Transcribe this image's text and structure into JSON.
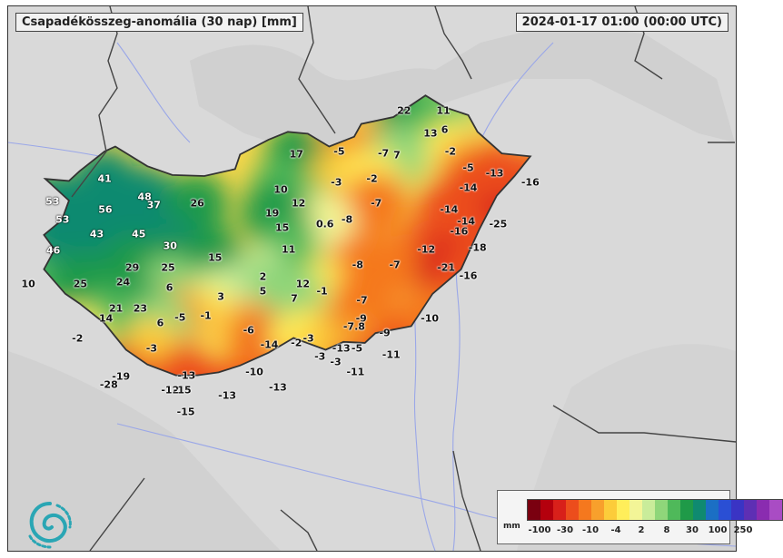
{
  "title": "Csapadékösszeg-anomália (30 nap) [mm]",
  "datetime": "2024-01-17 01:00 (00:00 UTC)",
  "map": {
    "region": "Hungary",
    "measurements": [
      {
        "label": "22",
        "lon": 21.15,
        "lat": 48.42
      },
      {
        "label": "11",
        "lon": 21.7,
        "lat": 48.42
      },
      {
        "label": "6",
        "lon": 21.72,
        "lat": 48.22
      },
      {
        "label": "13",
        "lon": 21.52,
        "lat": 48.18
      },
      {
        "label": "-2",
        "lon": 21.8,
        "lat": 48.0
      },
      {
        "label": "-5",
        "lon": 20.24,
        "lat": 48.0
      },
      {
        "label": "-7",
        "lon": 20.86,
        "lat": 47.98
      },
      {
        "label": "7",
        "lon": 21.05,
        "lat": 47.96
      },
      {
        "label": "17",
        "lon": 19.64,
        "lat": 47.97
      },
      {
        "label": "-5",
        "lon": 22.05,
        "lat": 47.83
      },
      {
        "label": "-13",
        "lon": 22.42,
        "lat": 47.78
      },
      {
        "label": "-16",
        "lon": 22.92,
        "lat": 47.69
      },
      {
        "label": "-3",
        "lon": 20.2,
        "lat": 47.69
      },
      {
        "label": "-2",
        "lon": 20.7,
        "lat": 47.72
      },
      {
        "label": "-14",
        "lon": 22.05,
        "lat": 47.63
      },
      {
        "label": "41",
        "lon": 16.95,
        "lat": 47.72
      },
      {
        "label": "10",
        "lon": 19.42,
        "lat": 47.61
      },
      {
        "label": "48",
        "lon": 17.51,
        "lat": 47.54
      },
      {
        "label": "37",
        "lon": 17.64,
        "lat": 47.45
      },
      {
        "label": "26",
        "lon": 18.25,
        "lat": 47.47
      },
      {
        "label": "12",
        "lon": 19.67,
        "lat": 47.47
      },
      {
        "label": "-7",
        "lon": 20.76,
        "lat": 47.47
      },
      {
        "label": "-14",
        "lon": 21.78,
        "lat": 47.41
      },
      {
        "label": "53",
        "lon": 16.22,
        "lat": 47.49
      },
      {
        "label": "56",
        "lon": 16.96,
        "lat": 47.41
      },
      {
        "label": "19",
        "lon": 19.3,
        "lat": 47.37
      },
      {
        "label": "-8",
        "lon": 20.35,
        "lat": 47.31
      },
      {
        "label": "-14",
        "lon": 22.02,
        "lat": 47.29
      },
      {
        "label": "-25",
        "lon": 22.47,
        "lat": 47.26
      },
      {
        "label": "53",
        "lon": 16.36,
        "lat": 47.31
      },
      {
        "label": "0.6",
        "lon": 20.04,
        "lat": 47.26
      },
      {
        "label": "15",
        "lon": 19.44,
        "lat": 47.22
      },
      {
        "label": "-16",
        "lon": 21.92,
        "lat": 47.19
      },
      {
        "label": "43",
        "lon": 16.84,
        "lat": 47.16
      },
      {
        "label": "45",
        "lon": 17.43,
        "lat": 47.16
      },
      {
        "label": "30",
        "lon": 17.87,
        "lat": 47.04
      },
      {
        "label": "11",
        "lon": 19.53,
        "lat": 47.0
      },
      {
        "label": "-12",
        "lon": 21.46,
        "lat": 47.0
      },
      {
        "label": "-18",
        "lon": 22.18,
        "lat": 47.02
      },
      {
        "label": "46",
        "lon": 16.23,
        "lat": 46.99
      },
      {
        "label": "15",
        "lon": 18.5,
        "lat": 46.92
      },
      {
        "label": "-8",
        "lon": 20.5,
        "lat": 46.84
      },
      {
        "label": "-7",
        "lon": 21.02,
        "lat": 46.84
      },
      {
        "label": "-21",
        "lon": 21.74,
        "lat": 46.82
      },
      {
        "label": "29",
        "lon": 17.34,
        "lat": 46.82
      },
      {
        "label": "25",
        "lon": 17.84,
        "lat": 46.82
      },
      {
        "label": "-16",
        "lon": 22.05,
        "lat": 46.73
      },
      {
        "label": "2",
        "lon": 19.17,
        "lat": 46.72
      },
      {
        "label": "12",
        "lon": 19.73,
        "lat": 46.65
      },
      {
        "label": "10",
        "lon": 15.88,
        "lat": 46.65
      },
      {
        "label": "25",
        "lon": 16.61,
        "lat": 46.65
      },
      {
        "label": "24",
        "lon": 17.21,
        "lat": 46.67
      },
      {
        "label": "6",
        "lon": 17.86,
        "lat": 46.61
      },
      {
        "label": "-1",
        "lon": 20.0,
        "lat": 46.58
      },
      {
        "label": "5",
        "lon": 19.17,
        "lat": 46.58
      },
      {
        "label": "3",
        "lon": 18.58,
        "lat": 46.52
      },
      {
        "label": "7",
        "lon": 19.61,
        "lat": 46.5
      },
      {
        "label": "-7",
        "lon": 20.56,
        "lat": 46.48
      },
      {
        "label": "21",
        "lon": 17.11,
        "lat": 46.4
      },
      {
        "label": "23",
        "lon": 17.45,
        "lat": 46.4
      },
      {
        "label": "-1",
        "lon": 18.37,
        "lat": 46.33
      },
      {
        "label": "-5",
        "lon": 18.01,
        "lat": 46.31
      },
      {
        "label": "14",
        "lon": 16.97,
        "lat": 46.3
      },
      {
        "label": "-9",
        "lon": 20.55,
        "lat": 46.3
      },
      {
        "label": "-10",
        "lon": 21.51,
        "lat": 46.3
      },
      {
        "label": "6",
        "lon": 17.73,
        "lat": 46.25
      },
      {
        "label": "-7.8",
        "lon": 20.45,
        "lat": 46.22
      },
      {
        "label": "-6",
        "lon": 18.97,
        "lat": 46.18
      },
      {
        "label": "-9",
        "lon": 20.88,
        "lat": 46.15
      },
      {
        "label": "-2",
        "lon": 16.57,
        "lat": 46.1
      },
      {
        "label": "-3",
        "lon": 19.81,
        "lat": 46.1
      },
      {
        "label": "-14",
        "lon": 19.26,
        "lat": 46.03
      },
      {
        "label": "-2",
        "lon": 19.64,
        "lat": 46.05
      },
      {
        "label": "-13",
        "lon": 20.27,
        "lat": 45.99
      },
      {
        "label": "-5",
        "lon": 20.49,
        "lat": 45.99
      },
      {
        "label": "-3",
        "lon": 17.61,
        "lat": 45.99
      },
      {
        "label": "-11",
        "lon": 20.97,
        "lat": 45.93
      },
      {
        "label": "-3",
        "lon": 19.97,
        "lat": 45.91
      },
      {
        "label": "-3",
        "lon": 20.19,
        "lat": 45.86
      },
      {
        "label": "-11",
        "lon": 20.47,
        "lat": 45.75
      },
      {
        "label": "-10",
        "lon": 19.05,
        "lat": 45.75
      },
      {
        "label": "-19",
        "lon": 17.18,
        "lat": 45.71
      },
      {
        "label": "-13",
        "lon": 18.1,
        "lat": 45.72
      },
      {
        "label": "-28",
        "lon": 17.01,
        "lat": 45.62
      },
      {
        "label": "-12",
        "lon": 17.87,
        "lat": 45.57
      },
      {
        "label": "-15",
        "lon": 18.04,
        "lat": 45.57
      },
      {
        "label": "-13",
        "lon": 19.38,
        "lat": 45.6
      },
      {
        "label": "-13",
        "lon": 18.67,
        "lat": 45.51
      },
      {
        "label": "-15",
        "lon": 18.09,
        "lat": 45.35
      }
    ]
  },
  "legend": {
    "unit": "mm",
    "colors": [
      "#7a0010",
      "#b4000d",
      "#d8201a",
      "#ec4d1c",
      "#f5781e",
      "#f8a02c",
      "#fccc3a",
      "#ffee5a",
      "#f3f597",
      "#c9ec9a",
      "#8fd67a",
      "#4fb95a",
      "#1f9a48",
      "#0f8a70",
      "#1b6fc4",
      "#2a4fd4",
      "#3a34c4",
      "#5e2fb4",
      "#8a2cb0",
      "#a94cc4"
    ],
    "labels": [
      "-100",
      "-30",
      "-10",
      "-4",
      "2",
      "8",
      "30",
      "100",
      "250"
    ]
  },
  "logo": {
    "name": "omsz-logo-icon"
  }
}
